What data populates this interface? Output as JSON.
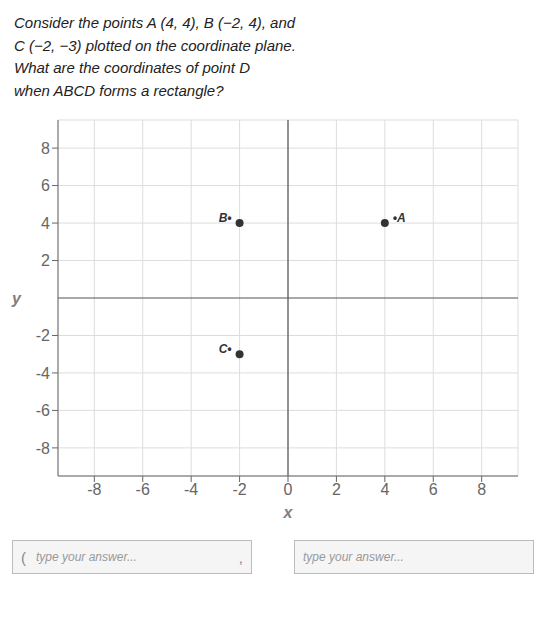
{
  "chart_data": {
    "type": "scatter",
    "title": "Consider the points A (4, 4), B (−2, 4), and\nC (−2, −3) plotted on the coordinate plane.\nWhat are the coordinates of point D\nwhen ABCD forms a rectangle?",
    "x": [
      4,
      -2,
      -2
    ],
    "values": [
      4,
      4,
      -3
    ],
    "labels": [
      "•A",
      "B•",
      "C•"
    ],
    "color": "#333333",
    "xlabel": "x",
    "ylabel": "y",
    "xlim": [
      -9.5,
      9.5
    ],
    "ylim": [
      -9.5,
      9.5
    ],
    "xticks": [
      -8,
      -6,
      -4,
      -2,
      0,
      2,
      4,
      6,
      8
    ],
    "yticks": [
      -8,
      -6,
      -4,
      -2,
      2,
      4,
      6,
      8
    ],
    "grid": true,
    "annotations": [
      "(",
      "type your answer...",
      ",",
      "type your answer..."
    ]
  }
}
